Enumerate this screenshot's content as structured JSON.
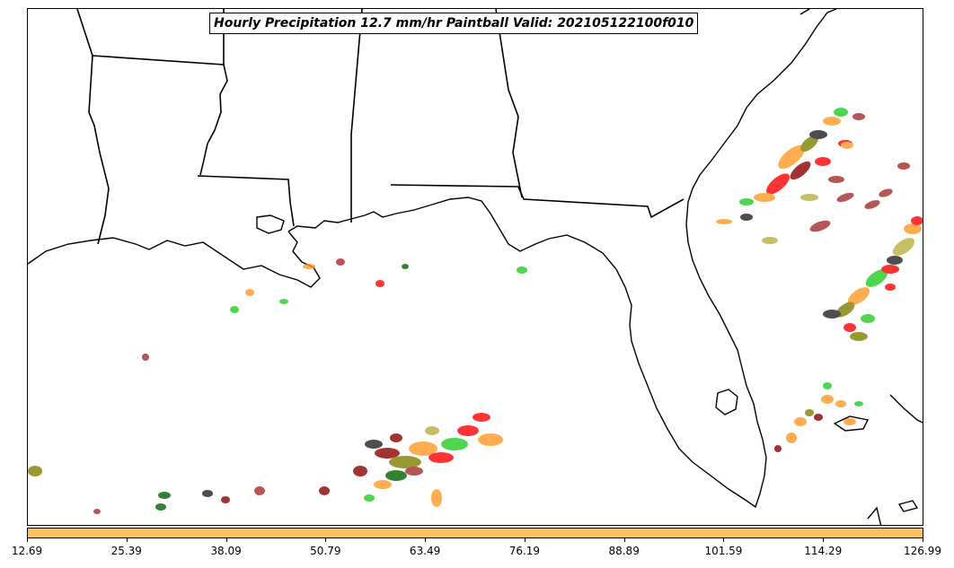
{
  "title": "Hourly Precipitation 12.7 mm/hr Paintball Valid: 202105122100f010",
  "colorbar": {
    "color": "#ffc060",
    "ticks": [
      "12.69",
      "25.39",
      "38.09",
      "50.79",
      "63.49",
      "76.19",
      "88.89",
      "101.59",
      "114.29",
      "126.99"
    ]
  },
  "map": {
    "land_line_color": "#000000",
    "background": "#ffffff",
    "region": "Gulf of Mexico and Southeastern United States",
    "paintball_colors": [
      "#ff0000",
      "#22cc22",
      "#ff9922",
      "#8b0000",
      "#006400",
      "#808000",
      "#222222",
      "#a52a2a",
      "#b8b040"
    ]
  }
}
